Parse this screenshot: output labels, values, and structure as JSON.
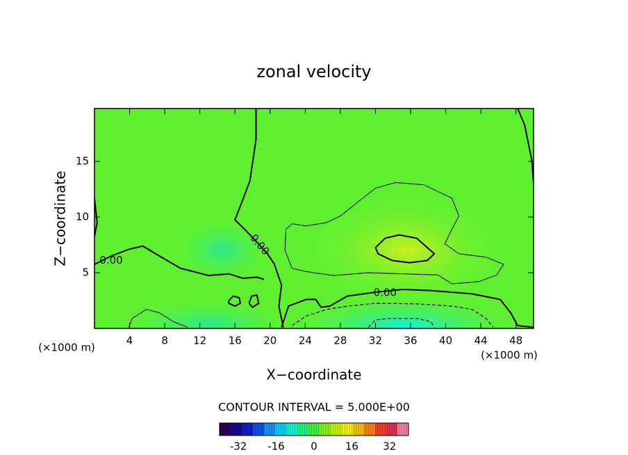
{
  "chart_data": {
    "type": "contour",
    "title": "zonal velocity",
    "x_label": "X−coordinate",
    "y_label": "Z−coordinate",
    "x_unit": "(×1000 m)",
    "y_unit": "(×1000 m)",
    "note": "CONTOUR INTERVAL = 5.000E+00",
    "xlim": [
      0,
      50
    ],
    "ylim": [
      0,
      19.75
    ],
    "xticks": [
      4,
      8,
      12,
      16,
      20,
      24,
      28,
      32,
      36,
      40,
      44,
      48
    ],
    "yticks": [
      5,
      10,
      15
    ],
    "contours": [
      {
        "level": 0,
        "style": "solid",
        "x": [
          18.4,
          18.4,
          17.7,
          16.5,
          16.0,
          17.1,
          18.5,
          19.7,
          20.5,
          20.9,
          21.3,
          21.0,
          21.5
        ],
        "y": [
          19.75,
          17,
          13.25,
          10.75,
          9.75,
          8.9,
          7.75,
          6.7,
          5.75,
          4.8,
          3.9,
          2.0,
          0.1
        ]
      },
      {
        "level": 0,
        "style": "solid",
        "x": [
          0,
          1.9,
          3.9,
          5.5,
          7.4,
          9.8,
          13.0,
          15.3,
          16.9,
          18.5,
          19.3
        ],
        "y": [
          5.75,
          6.5,
          7.1,
          7.4,
          6.5,
          5.4,
          4.75,
          4.9,
          4.5,
          4.6,
          4.4
        ]
      },
      {
        "level": 0,
        "style": "solid",
        "x": [
          21.3,
          22.1,
          24.1,
          25.2,
          25.8,
          26.8,
          28.8,
          32.0,
          35.1,
          38.3,
          43.0,
          46.2,
          47.4,
          48.2,
          50
        ],
        "y": [
          0.1,
          2.0,
          2.6,
          2.6,
          1.9,
          2.0,
          2.9,
          3.25,
          3.5,
          3.4,
          3.1,
          2.6,
          1.4,
          0.25,
          0.1
        ]
      },
      {
        "level": 0,
        "style": "solid",
        "x": [
          48.2,
          49.0,
          49.8,
          50
        ],
        "y": [
          19.75,
          18.25,
          15.1,
          13.1
        ]
      },
      {
        "level": 0,
        "style": "solid",
        "x": [
          0,
          0.3,
          0
        ],
        "y": [
          11.7,
          9.5,
          8.25
        ]
      },
      {
        "level": 5,
        "style": "solid",
        "x": [
          32.0,
          33.1,
          34.7,
          36.7,
          38.7,
          37.9,
          35.9,
          33.9,
          32.3,
          32.0
        ],
        "y": [
          7.25,
          8.1,
          8.4,
          8.1,
          6.7,
          6.1,
          5.9,
          6.1,
          6.7,
          7.25
        ]
      },
      {
        "level": 0,
        "style": "solid",
        "x": [
          15.3,
          15.8,
          16.5,
          16.6,
          16.0,
          15.3,
          15.3
        ],
        "y": [
          2.5,
          2.9,
          2.75,
          2.25,
          2.0,
          2.25,
          2.5
        ]
      },
      {
        "level": 0,
        "style": "solid",
        "x": [
          17.6,
          17.9,
          18.5,
          18.7,
          18.0,
          17.6
        ],
        "y": [
          2.25,
          2.9,
          3.0,
          2.25,
          1.9,
          2.25
        ]
      },
      {
        "level": 5,
        "style": "thin",
        "x": [
          22.5,
          24.1,
          26.4,
          28.0,
          29.6,
          32.0,
          34.3,
          37.5,
          40.7,
          41.5,
          40.7,
          39.9,
          41.5,
          44.6,
          46.6,
          45.8,
          43.8,
          40.7,
          39.1,
          35.1,
          31.2,
          27.2,
          24.1,
          22.5,
          21.7,
          21.8,
          22.5
        ],
        "y": [
          9.4,
          9.2,
          9.5,
          10.1,
          11.1,
          12.6,
          13.1,
          12.9,
          11.7,
          10.1,
          8.9,
          7.6,
          6.7,
          6.4,
          5.75,
          4.8,
          4.2,
          4.0,
          4.8,
          4.9,
          5.0,
          4.75,
          5.1,
          5.4,
          7.0,
          8.9,
          9.4
        ]
      },
      {
        "level": 5,
        "style": "thin",
        "x": [
          3.9,
          4.3,
          5.9,
          7.4,
          9.0,
          10.6
        ],
        "y": [
          0.1,
          0.9,
          1.7,
          1.4,
          0.6,
          0.1
        ]
      },
      {
        "level": -5,
        "style": "dashed",
        "x": [
          22.5,
          24.1,
          26.4,
          28.8,
          32.0,
          36.7,
          40.7,
          43.0,
          44.6,
          45.4
        ],
        "y": [
          0.25,
          1.1,
          1.7,
          2.0,
          2.25,
          2.2,
          2.0,
          1.7,
          0.9,
          0.1
        ]
      },
      {
        "level": -10,
        "style": "dashed",
        "x": [
          31.2,
          32.0,
          33.5,
          36.7,
          38.3,
          38.7
        ],
        "y": [
          0.1,
          0.75,
          0.9,
          0.9,
          0.6,
          0.1
        ]
      }
    ],
    "contour_labels": [
      {
        "text": "0.00",
        "x": 1.9,
        "y": 6.1,
        "angle": 0
      },
      {
        "text": "0.00",
        "x": 18.8,
        "y": 7.5,
        "angle": 50
      },
      {
        "text": "0.00",
        "x": 33.1,
        "y": 3.2,
        "angle": 0
      }
    ],
    "colorbar": {
      "lim": [
        -40,
        40
      ],
      "ticks": [
        -32,
        -16,
        0,
        16,
        32
      ],
      "colors": [
        "#2a0050",
        "#1a0a8a",
        "#1020c0",
        "#1050e0",
        "#1890f0",
        "#10c8f0",
        "#10f0d0",
        "#20f080",
        "#40f040",
        "#80f020",
        "#c0f010",
        "#f0f010",
        "#f0c010",
        "#f08010",
        "#f04020",
        "#e03050",
        "#f080a0"
      ]
    }
  }
}
